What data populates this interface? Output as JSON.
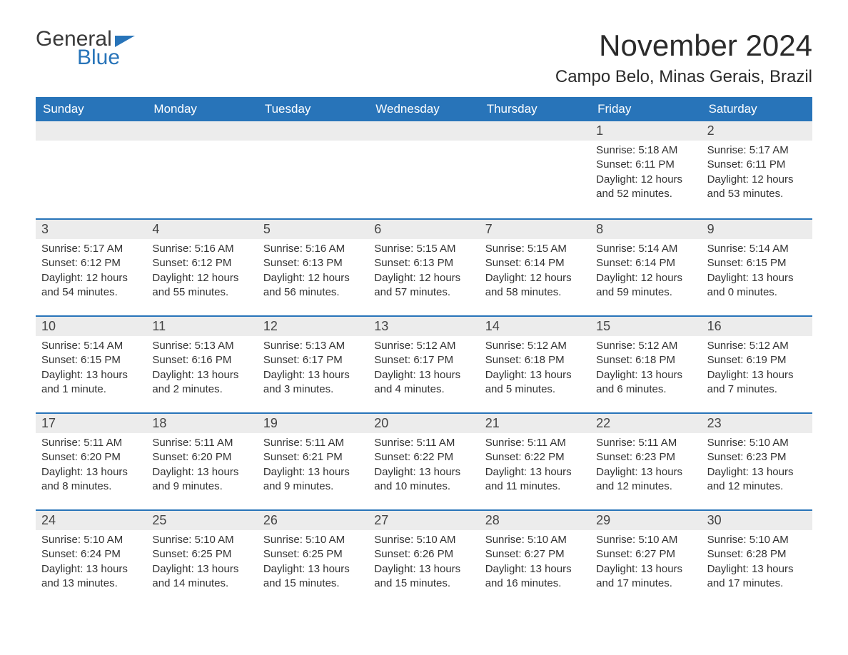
{
  "brand": {
    "word1": "General",
    "word2": "Blue"
  },
  "title": "November 2024",
  "location": "Campo Belo, Minas Gerais, Brazil",
  "colors": {
    "header_bg": "#2874b9",
    "header_text": "#ffffff",
    "row_divider": "#2874b9",
    "day_number_bg": "#ececec",
    "body_text": "#333333",
    "background": "#ffffff"
  },
  "typography": {
    "title_fontsize": 42,
    "location_fontsize": 24,
    "weekday_fontsize": 17,
    "daynum_fontsize": 18,
    "body_fontsize": 15
  },
  "weekdays": [
    "Sunday",
    "Monday",
    "Tuesday",
    "Wednesday",
    "Thursday",
    "Friday",
    "Saturday"
  ],
  "labels": {
    "sunrise": "Sunrise: ",
    "sunset": "Sunset: ",
    "daylight": "Daylight: "
  },
  "weeks": [
    [
      {
        "empty": true
      },
      {
        "empty": true
      },
      {
        "empty": true
      },
      {
        "empty": true
      },
      {
        "empty": true
      },
      {
        "num": "1",
        "sunrise": "5:18 AM",
        "sunset": "6:11 PM",
        "daylight": "12 hours and 52 minutes."
      },
      {
        "num": "2",
        "sunrise": "5:17 AM",
        "sunset": "6:11 PM",
        "daylight": "12 hours and 53 minutes."
      }
    ],
    [
      {
        "num": "3",
        "sunrise": "5:17 AM",
        "sunset": "6:12 PM",
        "daylight": "12 hours and 54 minutes."
      },
      {
        "num": "4",
        "sunrise": "5:16 AM",
        "sunset": "6:12 PM",
        "daylight": "12 hours and 55 minutes."
      },
      {
        "num": "5",
        "sunrise": "5:16 AM",
        "sunset": "6:13 PM",
        "daylight": "12 hours and 56 minutes."
      },
      {
        "num": "6",
        "sunrise": "5:15 AM",
        "sunset": "6:13 PM",
        "daylight": "12 hours and 57 minutes."
      },
      {
        "num": "7",
        "sunrise": "5:15 AM",
        "sunset": "6:14 PM",
        "daylight": "12 hours and 58 minutes."
      },
      {
        "num": "8",
        "sunrise": "5:14 AM",
        "sunset": "6:14 PM",
        "daylight": "12 hours and 59 minutes."
      },
      {
        "num": "9",
        "sunrise": "5:14 AM",
        "sunset": "6:15 PM",
        "daylight": "13 hours and 0 minutes."
      }
    ],
    [
      {
        "num": "10",
        "sunrise": "5:14 AM",
        "sunset": "6:15 PM",
        "daylight": "13 hours and 1 minute."
      },
      {
        "num": "11",
        "sunrise": "5:13 AM",
        "sunset": "6:16 PM",
        "daylight": "13 hours and 2 minutes."
      },
      {
        "num": "12",
        "sunrise": "5:13 AM",
        "sunset": "6:17 PM",
        "daylight": "13 hours and 3 minutes."
      },
      {
        "num": "13",
        "sunrise": "5:12 AM",
        "sunset": "6:17 PM",
        "daylight": "13 hours and 4 minutes."
      },
      {
        "num": "14",
        "sunrise": "5:12 AM",
        "sunset": "6:18 PM",
        "daylight": "13 hours and 5 minutes."
      },
      {
        "num": "15",
        "sunrise": "5:12 AM",
        "sunset": "6:18 PM",
        "daylight": "13 hours and 6 minutes."
      },
      {
        "num": "16",
        "sunrise": "5:12 AM",
        "sunset": "6:19 PM",
        "daylight": "13 hours and 7 minutes."
      }
    ],
    [
      {
        "num": "17",
        "sunrise": "5:11 AM",
        "sunset": "6:20 PM",
        "daylight": "13 hours and 8 minutes."
      },
      {
        "num": "18",
        "sunrise": "5:11 AM",
        "sunset": "6:20 PM",
        "daylight": "13 hours and 9 minutes."
      },
      {
        "num": "19",
        "sunrise": "5:11 AM",
        "sunset": "6:21 PM",
        "daylight": "13 hours and 9 minutes."
      },
      {
        "num": "20",
        "sunrise": "5:11 AM",
        "sunset": "6:22 PM",
        "daylight": "13 hours and 10 minutes."
      },
      {
        "num": "21",
        "sunrise": "5:11 AM",
        "sunset": "6:22 PM",
        "daylight": "13 hours and 11 minutes."
      },
      {
        "num": "22",
        "sunrise": "5:11 AM",
        "sunset": "6:23 PM",
        "daylight": "13 hours and 12 minutes."
      },
      {
        "num": "23",
        "sunrise": "5:10 AM",
        "sunset": "6:23 PM",
        "daylight": "13 hours and 12 minutes."
      }
    ],
    [
      {
        "num": "24",
        "sunrise": "5:10 AM",
        "sunset": "6:24 PM",
        "daylight": "13 hours and 13 minutes."
      },
      {
        "num": "25",
        "sunrise": "5:10 AM",
        "sunset": "6:25 PM",
        "daylight": "13 hours and 14 minutes."
      },
      {
        "num": "26",
        "sunrise": "5:10 AM",
        "sunset": "6:25 PM",
        "daylight": "13 hours and 15 minutes."
      },
      {
        "num": "27",
        "sunrise": "5:10 AM",
        "sunset": "6:26 PM",
        "daylight": "13 hours and 15 minutes."
      },
      {
        "num": "28",
        "sunrise": "5:10 AM",
        "sunset": "6:27 PM",
        "daylight": "13 hours and 16 minutes."
      },
      {
        "num": "29",
        "sunrise": "5:10 AM",
        "sunset": "6:27 PM",
        "daylight": "13 hours and 17 minutes."
      },
      {
        "num": "30",
        "sunrise": "5:10 AM",
        "sunset": "6:28 PM",
        "daylight": "13 hours and 17 minutes."
      }
    ]
  ]
}
